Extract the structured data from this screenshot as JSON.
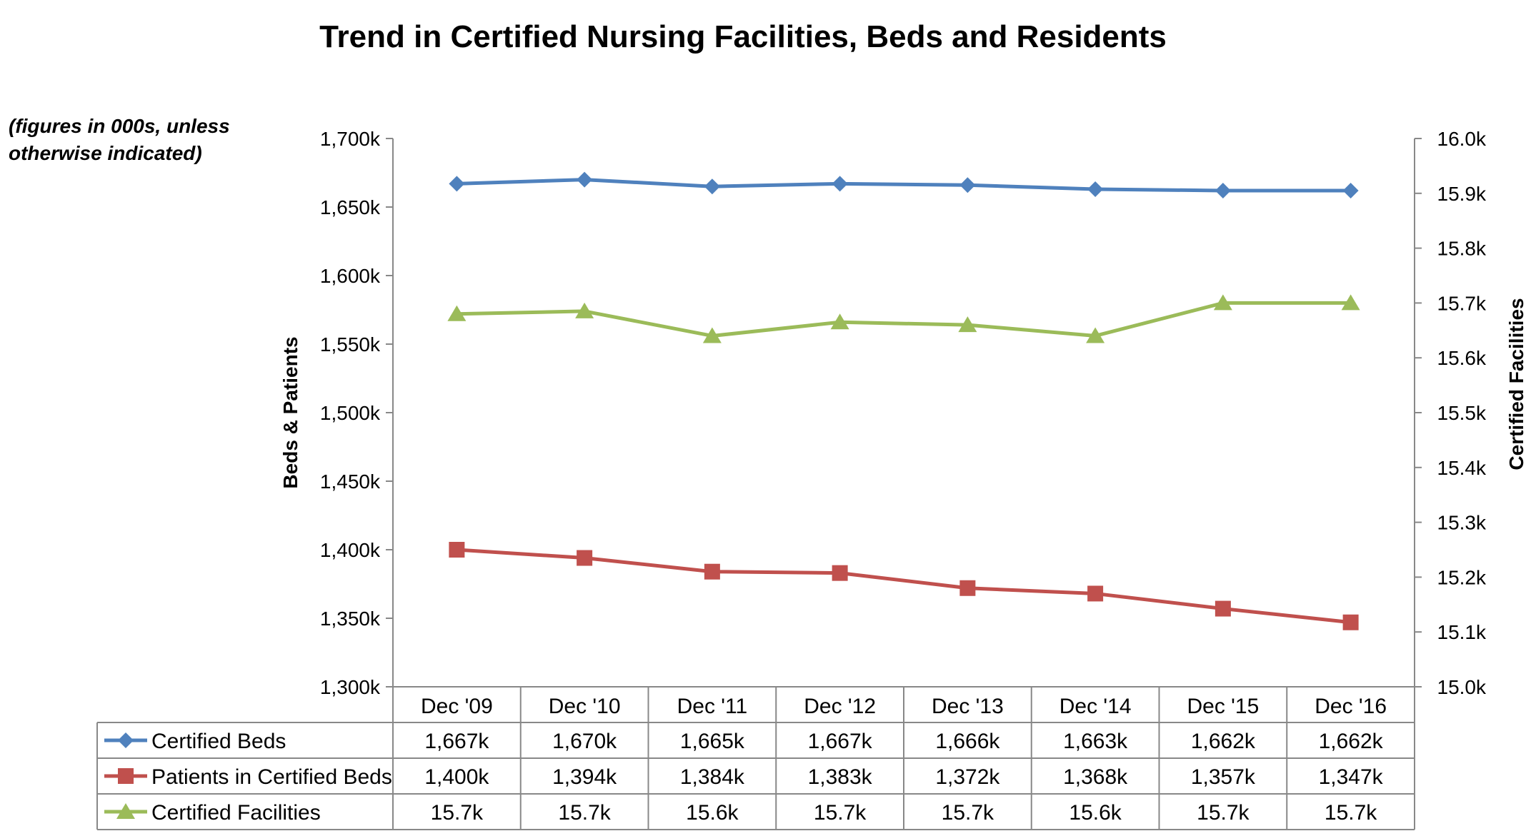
{
  "chart_data": {
    "type": "line",
    "title": "Trend in Certified Nursing Facilities, Beds and Residents",
    "note": [
      "(figures in 000s, unless",
      "otherwise indicated)"
    ],
    "categories": [
      "Dec '09",
      "Dec '10",
      "Dec '11",
      "Dec '12",
      "Dec '13",
      "Dec '14",
      "Dec '15",
      "Dec '16"
    ],
    "y_left": {
      "label": "Beds & Patients",
      "range": [
        1300,
        1700
      ],
      "ticks": [
        1300,
        1350,
        1400,
        1450,
        1500,
        1550,
        1600,
        1650,
        1700
      ],
      "tick_labels": [
        "1,300k",
        "1,350k",
        "1,400k",
        "1,450k",
        "1,500k",
        "1,550k",
        "1,600k",
        "1,650k",
        "1,700k"
      ]
    },
    "y_right": {
      "label": "Certified Facilities",
      "range": [
        15.0,
        16.0
      ],
      "ticks": [
        15.0,
        15.1,
        15.2,
        15.3,
        15.4,
        15.5,
        15.6,
        15.7,
        15.8,
        15.9,
        16.0
      ],
      "tick_labels": [
        "15.0k",
        "15.1k",
        "15.2k",
        "15.3k",
        "15.4k",
        "15.5k",
        "15.6k",
        "15.7k",
        "15.8k",
        "15.9k",
        "16.0k"
      ]
    },
    "grid": false,
    "legend": "data-table-below",
    "series": [
      {
        "name": "Certified Beds",
        "axis": "left",
        "marker": "diamond",
        "color": "#4F81BD",
        "values": [
          1667,
          1670,
          1665,
          1667,
          1666,
          1663,
          1662,
          1662
        ],
        "labels": [
          "1,667k",
          "1,670k",
          "1,665k",
          "1,667k",
          "1,666k",
          "1,663k",
          "1,662k",
          "1,662k"
        ]
      },
      {
        "name": "Patients in Certified Beds",
        "axis": "left",
        "marker": "square",
        "color": "#C0504D",
        "values": [
          1400,
          1394,
          1384,
          1383,
          1372,
          1368,
          1357,
          1347
        ],
        "labels": [
          "1,400k",
          "1,394k",
          "1,384k",
          "1,383k",
          "1,372k",
          "1,368k",
          "1,357k",
          "1,347k"
        ]
      },
      {
        "name": "Certified Facilities",
        "axis": "right",
        "marker": "triangle",
        "color": "#9BBB59",
        "values": [
          15.68,
          15.685,
          15.64,
          15.665,
          15.66,
          15.64,
          15.7,
          15.7
        ],
        "labels": [
          "15.7k",
          "15.7k",
          "15.6k",
          "15.7k",
          "15.7k",
          "15.6k",
          "15.7k",
          "15.7k"
        ]
      }
    ]
  }
}
